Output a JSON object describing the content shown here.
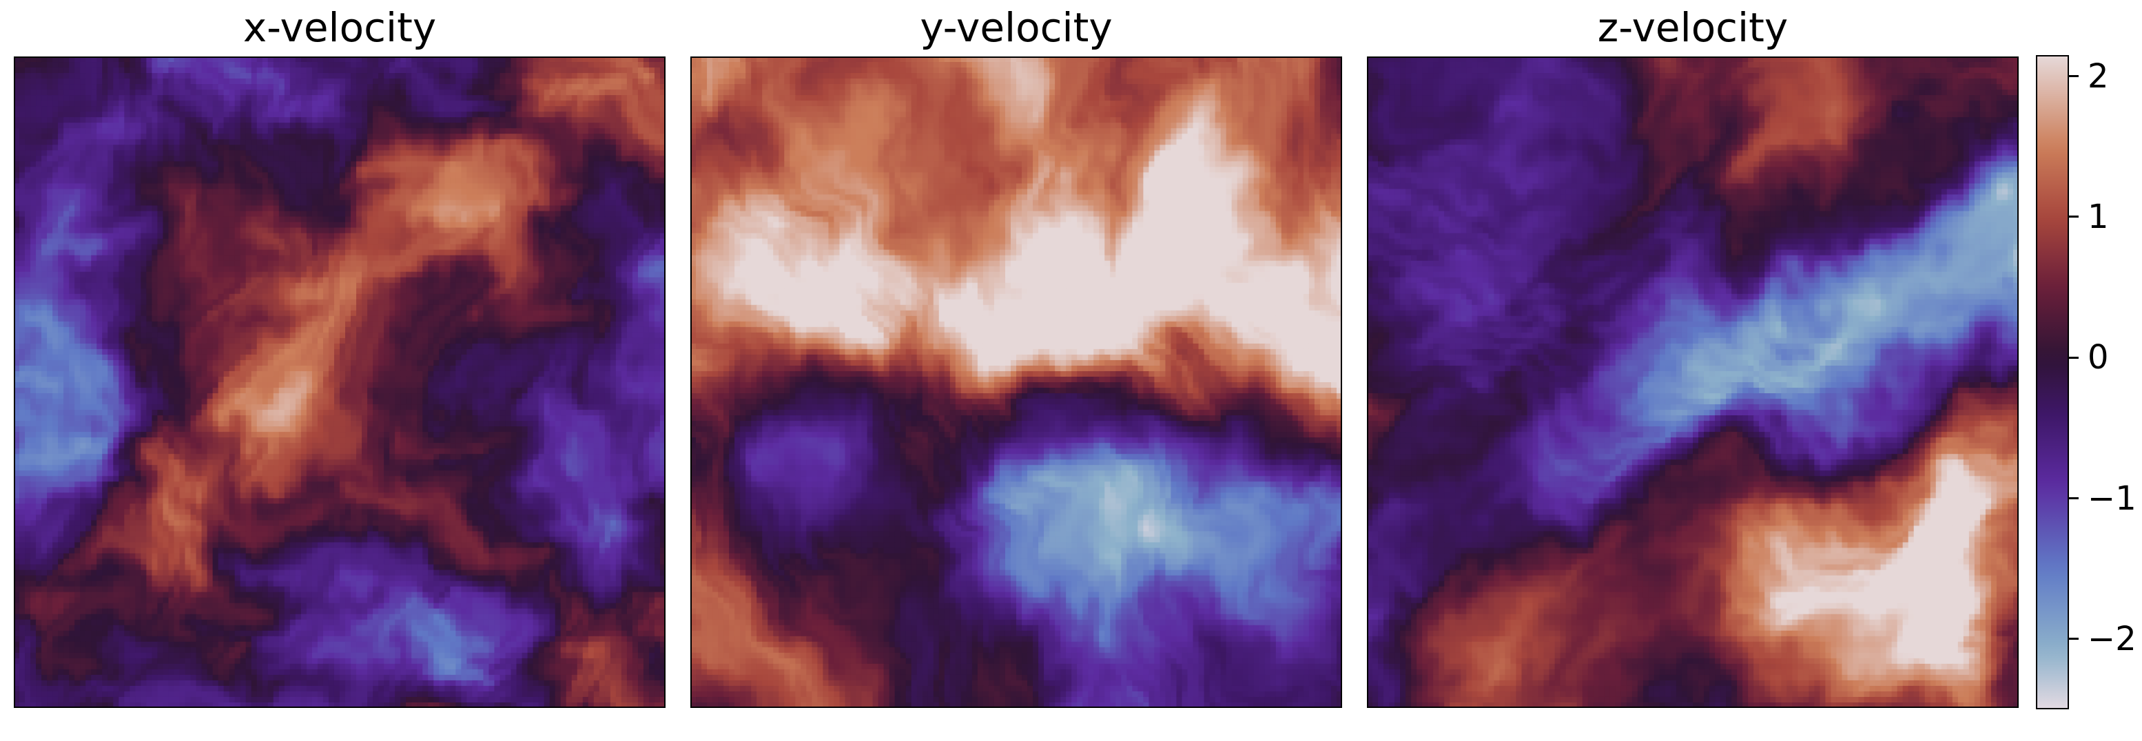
{
  "chart_data": [
    {
      "type": "heatmap",
      "title": "x-velocity",
      "xlabel": "",
      "ylabel": "",
      "axes_visible": false,
      "field": "mixed turbulent structure: warm (positive) plumes center-right and lower-left, cool (negative) patches at left edge, top-left and bottom"
    },
    {
      "type": "heatmap",
      "title": "y-velocity",
      "xlabel": "",
      "ylabel": "",
      "axes_visible": false,
      "field": "upper two thirds mostly positive (up to ~2), lower right strongly negative (~-2), dark band near the middle"
    },
    {
      "type": "heatmap",
      "title": "z-velocity",
      "xlabel": "",
      "ylabel": "",
      "axes_visible": false,
      "field": "diagonal negative band (~-1 to -2) from lower-left to upper-right, positive region lower-right, near-zero dark elsewhere"
    }
  ],
  "colorbar": {
    "min": -2.5,
    "max": 2.15,
    "ticks": [
      2,
      1,
      0,
      -1,
      -2
    ],
    "tick_labels": [
      "2",
      "1",
      "0",
      "−1",
      "−2"
    ],
    "colormap": "twilight_shifted",
    "stops": [
      {
        "v": -2.5,
        "color": "#e2d9e2"
      },
      {
        "v": -2.1,
        "color": "#8eb2cb"
      },
      {
        "v": -1.5,
        "color": "#6079c6"
      },
      {
        "v": -0.9,
        "color": "#5c2ba0"
      },
      {
        "v": -0.4,
        "color": "#3e1767"
      },
      {
        "v": 0.0,
        "color": "#2f1436"
      },
      {
        "v": 0.5,
        "color": "#6a1f3a"
      },
      {
        "v": 1.0,
        "color": "#a8473d"
      },
      {
        "v": 1.5,
        "color": "#cc7e5a"
      },
      {
        "v": 2.15,
        "color": "#e6d8d8"
      }
    ]
  }
}
